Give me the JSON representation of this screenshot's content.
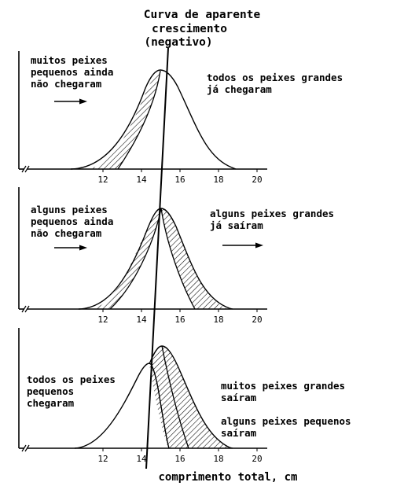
{
  "figure": {
    "title_lines": [
      "Curva de aparente",
      "crescimento",
      "(negativo)"
    ],
    "x_axis_title": "comprimento total, cm",
    "panels": [
      {
        "tick_labels": [
          "12",
          "14",
          "16",
          "18",
          "20"
        ],
        "left_text": [
          "muitos peixes",
          "pequenos ainda",
          "não chegaram"
        ],
        "right_text_1": [
          "todos os peixes grandes",
          "já chegaram"
        ],
        "right_text_2": []
      },
      {
        "tick_labels": [
          "12",
          "14",
          "16",
          "18",
          "20"
        ],
        "left_text": [
          "alguns peixes",
          "pequenos ainda",
          "não chegaram"
        ],
        "right_text_1": [
          "alguns peixes grandes",
          "já saíram"
        ],
        "right_text_2": []
      },
      {
        "tick_labels": [
          "12",
          "14",
          "16",
          "18",
          "20"
        ],
        "left_text": [
          "todos os peixes",
          "pequenos",
          "chegaram"
        ],
        "right_text_1": [
          "muitos peixes grandes",
          "saíram"
        ],
        "right_text_2": [
          "alguns peixes pequenos",
          "saíram"
        ]
      }
    ]
  }
}
